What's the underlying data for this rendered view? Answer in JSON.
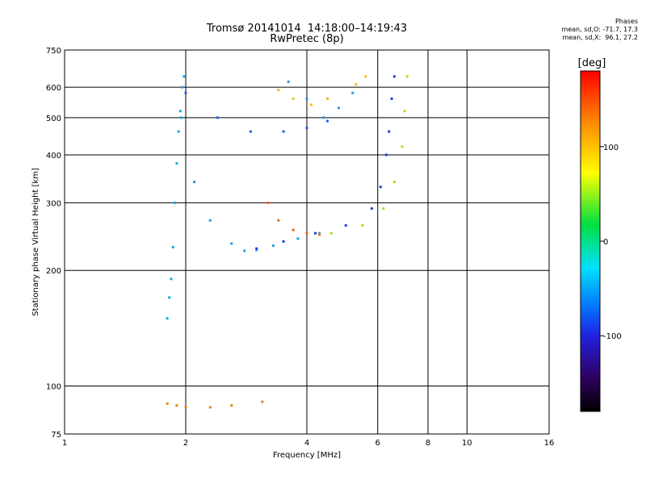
{
  "header": {
    "title_line1": "Tromsø 20141014  14:18:00–14:19:43",
    "title_line2": "RwPretec (8p)",
    "stats_title": "Phases",
    "stats_o": "mean, sd,O: -71.7, 17.3",
    "stats_x": "mean, sd,X:  96.1, 27.2"
  },
  "chart_data": {
    "type": "scatter",
    "title": "Tromsø 20141014  14:18:00–14:19:43",
    "subtitle": "RwPretec (8p)",
    "xlabel": "Frequency [MHz]",
    "ylabel": "Stationary phase Virtual Height [km]",
    "x_scale": "log",
    "y_scale": "log",
    "xlim": [
      1,
      16
    ],
    "ylim": [
      75,
      750
    ],
    "x_ticks": [
      1,
      2,
      4,
      6,
      8,
      10,
      16
    ],
    "x_tick_labels": [
      "1",
      "2",
      "4",
      "6",
      "8",
      "10",
      "16"
    ],
    "y_ticks": [
      75,
      100,
      200,
      300,
      400,
      500,
      600,
      750
    ],
    "y_tick_labels": [
      "75",
      "100",
      "200",
      "300",
      "400",
      "500",
      "600",
      "750"
    ],
    "grid": true,
    "colorbar": {
      "label": "[deg]",
      "range": [
        -180,
        180
      ],
      "ticks": [
        100,
        0,
        -100
      ],
      "tick_labels": [
        "100",
        "0",
        "-100"
      ]
    },
    "series": [
      {
        "color": "#18a8e8",
        "points": [
          [
            1.8,
            150
          ],
          [
            1.82,
            170
          ],
          [
            1.84,
            190
          ],
          [
            1.86,
            230
          ],
          [
            1.88,
            300
          ],
          [
            1.9,
            380
          ],
          [
            1.92,
            460
          ],
          [
            1.94,
            520
          ],
          [
            1.96,
            600
          ],
          [
            1.98,
            640
          ]
        ]
      },
      {
        "color": "#20a0e0",
        "points": [
          [
            1.95,
            500
          ],
          [
            2.1,
            340
          ],
          [
            2.3,
            270
          ],
          [
            2.6,
            235
          ],
          [
            2.8,
            225
          ],
          [
            3.0,
            226
          ],
          [
            3.3,
            232
          ],
          [
            3.8,
            242
          ],
          [
            4.3,
            250
          ]
        ]
      },
      {
        "color": "#1c40d8",
        "points": [
          [
            3.0,
            228
          ],
          [
            3.5,
            238
          ],
          [
            4.2,
            250
          ],
          [
            5.0,
            262
          ],
          [
            5.8,
            290
          ],
          [
            6.1,
            330
          ],
          [
            6.3,
            400
          ],
          [
            6.4,
            460
          ],
          [
            6.5,
            560
          ],
          [
            6.6,
            640
          ]
        ]
      },
      {
        "color": "#a8e020",
        "points": [
          [
            4.6,
            250
          ],
          [
            5.5,
            262
          ],
          [
            6.2,
            290
          ],
          [
            6.6,
            340
          ],
          [
            6.9,
            420
          ],
          [
            7.0,
            520
          ],
          [
            7.1,
            640
          ]
        ]
      },
      {
        "color": "#f06818",
        "points": [
          [
            3.2,
            300
          ],
          [
            3.4,
            270
          ],
          [
            3.7,
            255
          ],
          [
            4.0,
            250
          ],
          [
            4.3,
            248
          ]
        ]
      },
      {
        "color": "#2860e0",
        "points": [
          [
            2.0,
            580
          ],
          [
            2.4,
            500
          ],
          [
            2.9,
            460
          ],
          [
            3.5,
            460
          ],
          [
            4.0,
            470
          ],
          [
            4.5,
            490
          ]
        ]
      },
      {
        "color": "#2898e8",
        "points": [
          [
            3.6,
            620
          ],
          [
            4.0,
            560
          ],
          [
            4.4,
            500
          ],
          [
            4.8,
            530
          ],
          [
            5.2,
            580
          ]
        ]
      },
      {
        "color": "#e88818",
        "points": [
          [
            1.8,
            90
          ],
          [
            1.9,
            89
          ],
          [
            2.0,
            88
          ],
          [
            2.3,
            88
          ],
          [
            2.6,
            89
          ],
          [
            3.1,
            91
          ]
        ]
      },
      {
        "color": "#e8c020",
        "points": [
          [
            3.4,
            590
          ],
          [
            3.7,
            560
          ],
          [
            4.1,
            540
          ],
          [
            4.5,
            560
          ],
          [
            5.3,
            610
          ],
          [
            5.6,
            640
          ]
        ]
      }
    ]
  }
}
